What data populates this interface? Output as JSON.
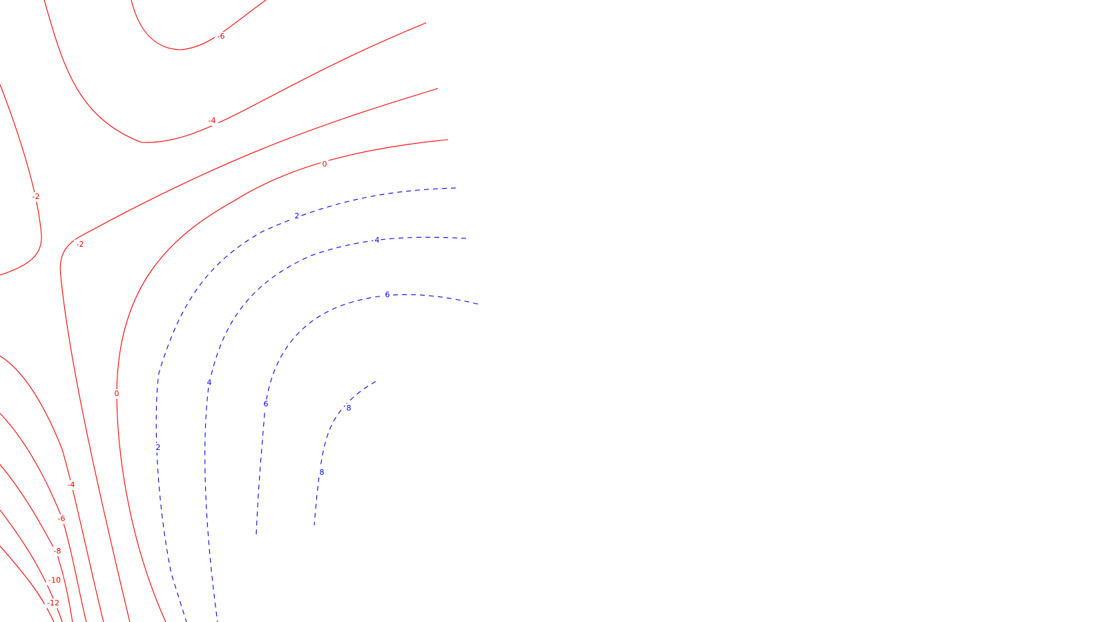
{
  "chart_data": {
    "type": "contour",
    "title": "",
    "xlabel": "",
    "ylabel": "",
    "negative_color": "#ff0000",
    "positive_color": "#0000ff",
    "negative_style": "solid",
    "positive_style": "dashed",
    "levels": [
      -12,
      -10,
      -8,
      -6,
      -4,
      -2,
      0,
      2,
      4,
      6,
      8
    ],
    "contours": [
      {
        "id": "neg6-top",
        "level": -6,
        "sign": "neg",
        "labels": [
          "-6"
        ]
      },
      {
        "id": "neg4-upper",
        "level": -4,
        "sign": "neg",
        "labels": [
          "-4"
        ]
      },
      {
        "id": "neg2-left",
        "level": -2,
        "sign": "neg",
        "labels": [
          "-2"
        ]
      },
      {
        "id": "neg2-mid",
        "level": -2,
        "sign": "neg",
        "labels": [
          "-2"
        ]
      },
      {
        "id": "zero",
        "level": 0,
        "sign": "neg",
        "labels": [
          "0",
          "0"
        ]
      },
      {
        "id": "pos2",
        "level": 2,
        "sign": "pos",
        "labels": [
          "2",
          "2"
        ]
      },
      {
        "id": "pos4",
        "level": 4,
        "sign": "pos",
        "labels": [
          "4",
          "4"
        ]
      },
      {
        "id": "pos6",
        "level": 6,
        "sign": "pos",
        "labels": [
          "6",
          "6"
        ]
      },
      {
        "id": "pos8",
        "level": 8,
        "sign": "pos",
        "labels": [
          "8",
          "8"
        ]
      },
      {
        "id": "neg4-lower",
        "level": -4,
        "sign": "neg",
        "labels": [
          "-4"
        ]
      },
      {
        "id": "neg6-lower",
        "level": -6,
        "sign": "neg",
        "labels": [
          "-6"
        ]
      },
      {
        "id": "neg8-lower",
        "level": -8,
        "sign": "neg",
        "labels": [
          "-8"
        ]
      },
      {
        "id": "neg10-lower",
        "level": -10,
        "sign": "neg",
        "labels": [
          "-10"
        ]
      },
      {
        "id": "neg12-lower",
        "level": -12,
        "sign": "neg",
        "labels": [
          "-12"
        ]
      }
    ]
  }
}
